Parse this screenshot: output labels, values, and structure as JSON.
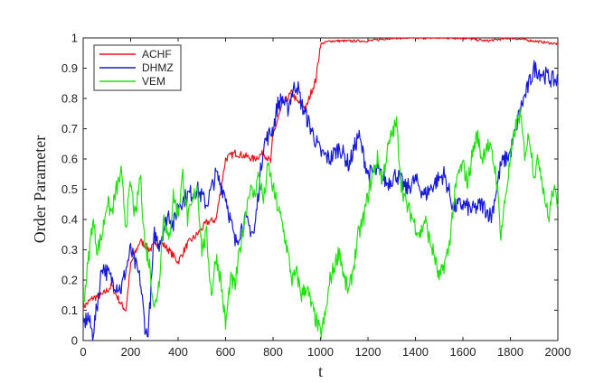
{
  "chart_data": {
    "type": "line",
    "title": "",
    "xlabel": "t",
    "ylabel": "Order Parameter",
    "xlim": [
      0,
      2000
    ],
    "ylim": [
      0,
      1
    ],
    "xticks": [
      0,
      200,
      400,
      600,
      800,
      1000,
      1200,
      1400,
      1600,
      1800,
      2000
    ],
    "yticks": [
      0,
      0.1,
      0.2,
      0.3,
      0.4,
      0.5,
      0.6,
      0.7,
      0.8,
      0.9,
      1
    ],
    "ytick_labels": [
      "0",
      "0.1",
      "0.2",
      "0.3",
      "0.4",
      "0.5",
      "0.6",
      "0.7",
      "0.8",
      "0.9",
      "1"
    ],
    "grid": false,
    "legend_position": "top-left",
    "series": [
      {
        "name": "ACHF",
        "color": "#e8141b",
        "x": [
          0,
          40,
          80,
          120,
          160,
          180,
          200,
          240,
          280,
          320,
          360,
          400,
          440,
          480,
          520,
          560,
          600,
          640,
          680,
          720,
          760,
          790,
          800,
          840,
          880,
          900,
          920,
          940,
          960,
          980,
          1000,
          1040,
          1100,
          1200,
          1300,
          1400,
          1500,
          1600,
          1700,
          1800,
          1900,
          2000
        ],
        "y": [
          0.11,
          0.14,
          0.15,
          0.18,
          0.12,
          0.1,
          0.25,
          0.33,
          0.3,
          0.33,
          0.3,
          0.26,
          0.32,
          0.35,
          0.39,
          0.4,
          0.6,
          0.62,
          0.61,
          0.6,
          0.62,
          0.59,
          0.68,
          0.78,
          0.82,
          0.79,
          0.78,
          0.77,
          0.82,
          0.86,
          0.98,
          0.99,
          0.99,
          0.99,
          1.0,
          1.0,
          1.0,
          1.0,
          0.99,
          1.0,
          0.99,
          0.98
        ]
      },
      {
        "name": "DHMZ",
        "color": "#1619d6",
        "x": [
          0,
          20,
          40,
          60,
          80,
          120,
          160,
          200,
          240,
          260,
          270,
          280,
          300,
          320,
          360,
          380,
          400,
          440,
          480,
          520,
          560,
          600,
          640,
          680,
          720,
          760,
          800,
          820,
          840,
          860,
          880,
          900,
          920,
          940,
          960,
          1000,
          1040,
          1080,
          1120,
          1160,
          1200,
          1240,
          1280,
          1320,
          1360,
          1400,
          1440,
          1480,
          1520,
          1560,
          1600,
          1640,
          1680,
          1720,
          1760,
          1800,
          1840,
          1880,
          1900,
          1940,
          1980,
          2000
        ],
        "y": [
          0.05,
          0.08,
          0.02,
          0.12,
          0.25,
          0.2,
          0.17,
          0.3,
          0.2,
          0.05,
          0.01,
          0.1,
          0.35,
          0.32,
          0.42,
          0.38,
          0.45,
          0.48,
          0.5,
          0.45,
          0.55,
          0.48,
          0.32,
          0.4,
          0.35,
          0.65,
          0.7,
          0.78,
          0.8,
          0.76,
          0.82,
          0.85,
          0.78,
          0.74,
          0.7,
          0.62,
          0.6,
          0.64,
          0.58,
          0.68,
          0.55,
          0.56,
          0.52,
          0.55,
          0.5,
          0.53,
          0.48,
          0.52,
          0.55,
          0.44,
          0.45,
          0.43,
          0.45,
          0.41,
          0.58,
          0.62,
          0.76,
          0.85,
          0.9,
          0.88,
          0.86,
          0.86
        ]
      },
      {
        "name": "VEM",
        "color": "#1fe20e",
        "x": [
          0,
          20,
          40,
          60,
          80,
          100,
          120,
          140,
          160,
          180,
          200,
          220,
          240,
          260,
          280,
          300,
          320,
          340,
          360,
          380,
          400,
          420,
          440,
          460,
          480,
          500,
          520,
          540,
          560,
          580,
          600,
          620,
          640,
          660,
          680,
          700,
          720,
          740,
          760,
          780,
          800,
          820,
          840,
          860,
          880,
          900,
          920,
          940,
          960,
          980,
          1000,
          1020,
          1040,
          1060,
          1080,
          1100,
          1120,
          1140,
          1160,
          1180,
          1200,
          1220,
          1240,
          1260,
          1280,
          1300,
          1320,
          1340,
          1360,
          1380,
          1400,
          1420,
          1440,
          1460,
          1480,
          1500,
          1520,
          1540,
          1560,
          1580,
          1600,
          1620,
          1640,
          1660,
          1680,
          1700,
          1720,
          1740,
          1760,
          1780,
          1800,
          1820,
          1840,
          1860,
          1880,
          1900,
          1920,
          1940,
          1960,
          1980,
          2000
        ],
        "y": [
          0.12,
          0.25,
          0.4,
          0.3,
          0.35,
          0.46,
          0.42,
          0.5,
          0.55,
          0.38,
          0.52,
          0.4,
          0.55,
          0.32,
          0.25,
          0.1,
          0.2,
          0.42,
          0.32,
          0.48,
          0.42,
          0.55,
          0.4,
          0.45,
          0.52,
          0.3,
          0.35,
          0.15,
          0.28,
          0.2,
          0.05,
          0.2,
          0.18,
          0.3,
          0.4,
          0.5,
          0.48,
          0.55,
          0.46,
          0.58,
          0.5,
          0.44,
          0.38,
          0.3,
          0.2,
          0.22,
          0.15,
          0.18,
          0.12,
          0.07,
          0.02,
          0.08,
          0.2,
          0.25,
          0.3,
          0.2,
          0.16,
          0.25,
          0.35,
          0.4,
          0.48,
          0.55,
          0.6,
          0.53,
          0.62,
          0.68,
          0.72,
          0.52,
          0.45,
          0.42,
          0.38,
          0.35,
          0.4,
          0.33,
          0.28,
          0.2,
          0.25,
          0.3,
          0.45,
          0.55,
          0.58,
          0.52,
          0.62,
          0.68,
          0.6,
          0.65,
          0.62,
          0.55,
          0.35,
          0.48,
          0.6,
          0.7,
          0.75,
          0.62,
          0.68,
          0.55,
          0.6,
          0.5,
          0.4,
          0.5,
          0.45
        ]
      }
    ]
  }
}
